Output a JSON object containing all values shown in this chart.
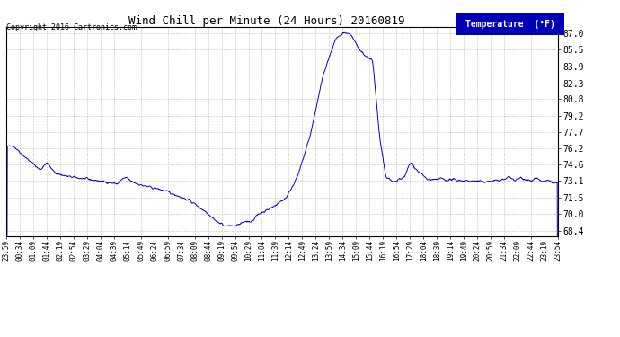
{
  "title": "Wind Chill per Minute (24 Hours) 20160819",
  "copyright": "Copyright 2016 Cartronics.com",
  "legend_label": "Temperature  (°F)",
  "line_color": "#0000cc",
  "bg_color": "#ffffff",
  "grid_color": "#b0b0b0",
  "yticks": [
    68.4,
    70.0,
    71.5,
    73.1,
    74.6,
    76.2,
    77.7,
    79.2,
    80.8,
    82.3,
    83.9,
    85.5,
    87.0
  ],
  "ylim": [
    67.9,
    87.6
  ],
  "xtick_labels": [
    "23:59",
    "00:34",
    "01:09",
    "01:44",
    "02:19",
    "02:54",
    "03:29",
    "04:04",
    "04:39",
    "05:14",
    "05:49",
    "06:24",
    "06:59",
    "07:34",
    "08:09",
    "08:44",
    "09:19",
    "09:54",
    "10:29",
    "11:04",
    "11:39",
    "12:14",
    "12:49",
    "13:24",
    "13:59",
    "14:34",
    "15:09",
    "15:44",
    "16:19",
    "16:54",
    "17:29",
    "18:04",
    "18:39",
    "19:14",
    "19:49",
    "20:24",
    "20:59",
    "21:34",
    "22:09",
    "22:44",
    "23:19",
    "23:54"
  ],
  "n_xticks": 42
}
